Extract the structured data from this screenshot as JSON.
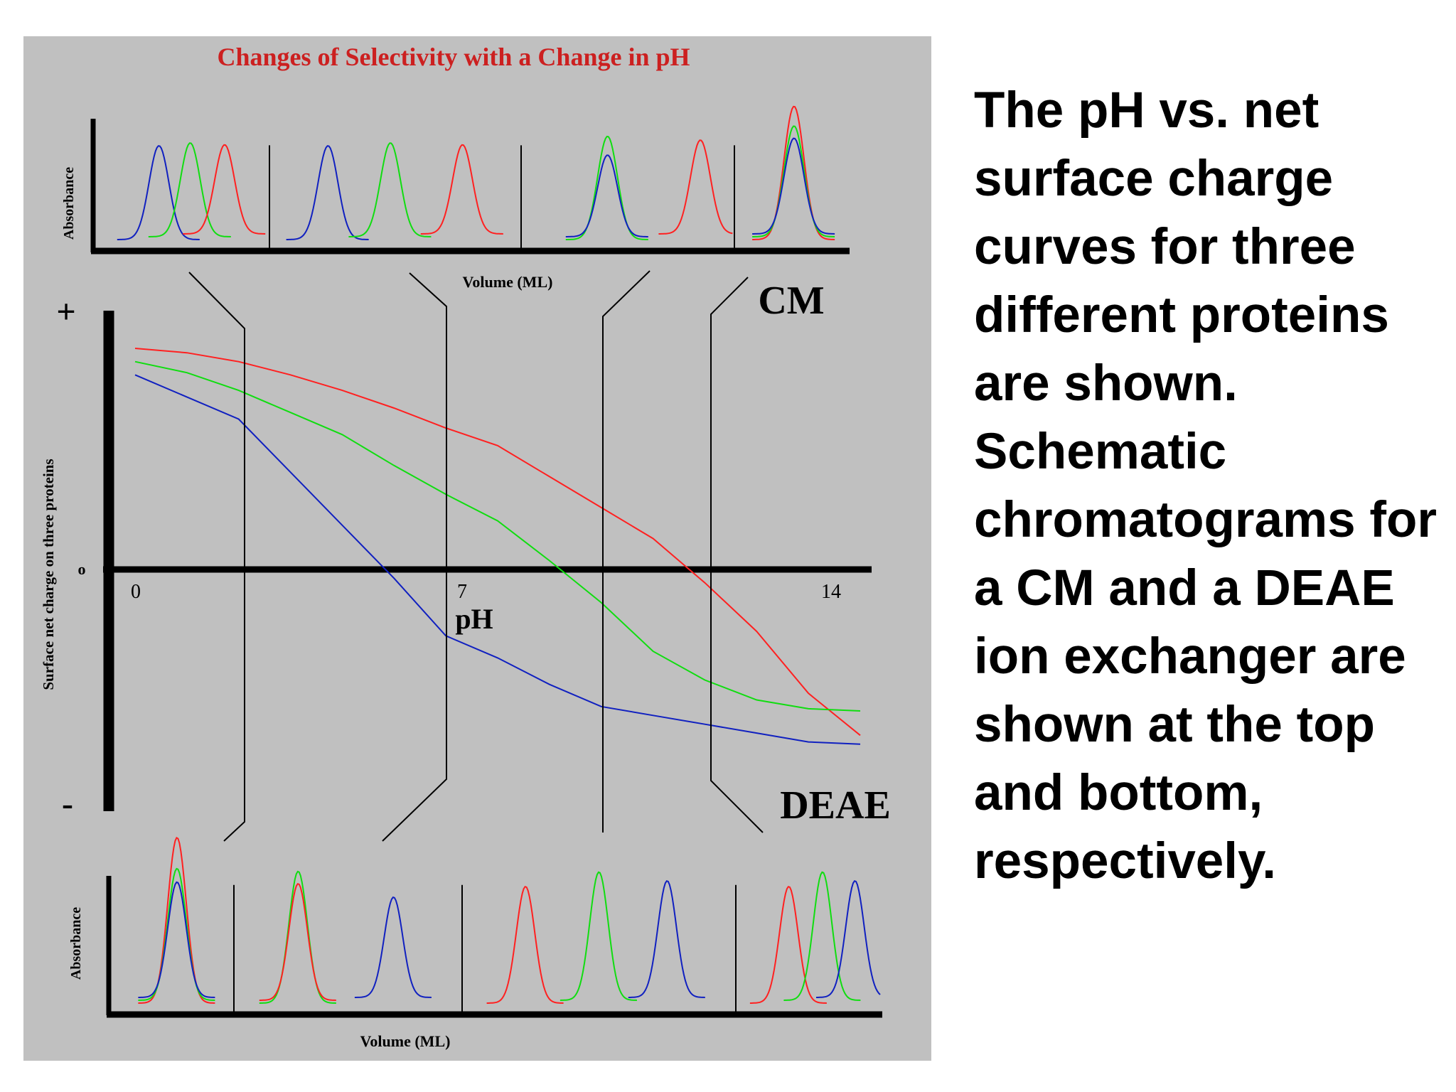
{
  "caption": "The pH vs. net surface charge curves for three different proteins are shown. Schematic chromatograms for a CM and a DEAE ion exchanger are shown at the top and bottom, respectively.",
  "colors": {
    "background": "#c0c0c0",
    "red": "#ff2020",
    "green": "#10dd10",
    "blue": "#1020c0",
    "title": "#cc2020",
    "axis": "#000000"
  },
  "chart_data": [
    {
      "type": "line",
      "title": "Changes of Selectivity with a Change in pH",
      "xlabel": "pH",
      "ylabel": "Surface net charge on three proteins",
      "y_symbols": {
        "positive": "+",
        "zero": "o",
        "negative": "-"
      },
      "x_ticks": [
        "0",
        "7",
        "14"
      ],
      "xlim": [
        0,
        14
      ],
      "ylim": [
        -1,
        1
      ],
      "series": [
        {
          "color": "red",
          "x": [
            0,
            1,
            2,
            3,
            4,
            5,
            6,
            7,
            8,
            9,
            10,
            11,
            12,
            13,
            14
          ],
          "y": [
            1.0,
            0.98,
            0.94,
            0.88,
            0.81,
            0.73,
            0.64,
            0.56,
            0.42,
            0.28,
            0.14,
            -0.06,
            -0.28,
            -0.56,
            -0.75
          ]
        },
        {
          "color": "green",
          "x": [
            0,
            1,
            2,
            3,
            4,
            5,
            6,
            7,
            8,
            9,
            10,
            11,
            12,
            13,
            14
          ],
          "y": [
            0.94,
            0.89,
            0.81,
            0.71,
            0.61,
            0.47,
            0.34,
            0.22,
            0.04,
            -0.15,
            -0.37,
            -0.5,
            -0.59,
            -0.63,
            -0.64
          ]
        },
        {
          "color": "blue",
          "x": [
            0,
            1,
            2,
            3,
            4,
            5,
            6,
            7,
            8,
            9,
            10,
            11,
            12,
            13,
            14
          ],
          "y": [
            0.88,
            0.78,
            0.68,
            0.44,
            0.2,
            -0.04,
            -0.3,
            -0.4,
            -0.52,
            -0.62,
            -0.66,
            -0.7,
            -0.74,
            -0.78,
            -0.79
          ]
        }
      ],
      "annotations": [
        "CM",
        "DEAE"
      ]
    },
    {
      "type": "line",
      "title": "CM",
      "xlabel": "Volume (ML)",
      "ylabel": "Absorbance",
      "panels": [
        {
          "peaks": [
            {
              "color": "blue",
              "x": 0.33,
              "height": 1.0
            },
            {
              "color": "green",
              "x": 0.53,
              "height": 1.0
            },
            {
              "color": "red",
              "x": 0.75,
              "height": 0.95
            }
          ]
        },
        {
          "peaks": [
            {
              "color": "blue",
              "x": 0.22,
              "height": 1.0
            },
            {
              "color": "green",
              "x": 0.48,
              "height": 1.0
            },
            {
              "color": "red",
              "x": 0.78,
              "height": 0.95
            }
          ]
        },
        {
          "peaks": [
            {
              "color": "green",
              "x": 0.4,
              "height": 1.1
            },
            {
              "color": "blue",
              "x": 0.4,
              "height": 0.87
            },
            {
              "color": "red",
              "x": 0.86,
              "height": 1.0
            }
          ]
        },
        {
          "peaks": [
            {
              "color": "red",
              "x": 0.52,
              "height": 1.42
            },
            {
              "color": "green",
              "x": 0.52,
              "height": 1.18
            },
            {
              "color": "blue",
              "x": 0.52,
              "height": 1.02
            }
          ]
        }
      ]
    },
    {
      "type": "line",
      "title": "DEAE",
      "xlabel": "Volume (ML)",
      "ylabel": "Absorbance",
      "panels": [
        {
          "peaks": [
            {
              "color": "red",
              "x": 0.52,
              "height": 1.42
            },
            {
              "color": "green",
              "x": 0.52,
              "height": 1.13
            },
            {
              "color": "blue",
              "x": 0.52,
              "height": 0.99
            }
          ]
        },
        {
          "peaks": [
            {
              "color": "green",
              "x": 0.27,
              "height": 1.13
            },
            {
              "color": "red",
              "x": 0.27,
              "height": 1.0
            },
            {
              "color": "blue",
              "x": 0.71,
              "height": 0.86
            }
          ]
        },
        {
          "peaks": [
            {
              "color": "red",
              "x": 0.22,
              "height": 1.0
            },
            {
              "color": "green",
              "x": 0.5,
              "height": 1.1
            },
            {
              "color": "blue",
              "x": 0.76,
              "height": 1.0
            }
          ]
        },
        {
          "peaks": [
            {
              "color": "red",
              "x": 0.35,
              "height": 1.0
            },
            {
              "color": "green",
              "x": 0.6,
              "height": 1.1
            },
            {
              "color": "blue",
              "x": 0.84,
              "height": 1.0
            }
          ]
        }
      ]
    }
  ]
}
